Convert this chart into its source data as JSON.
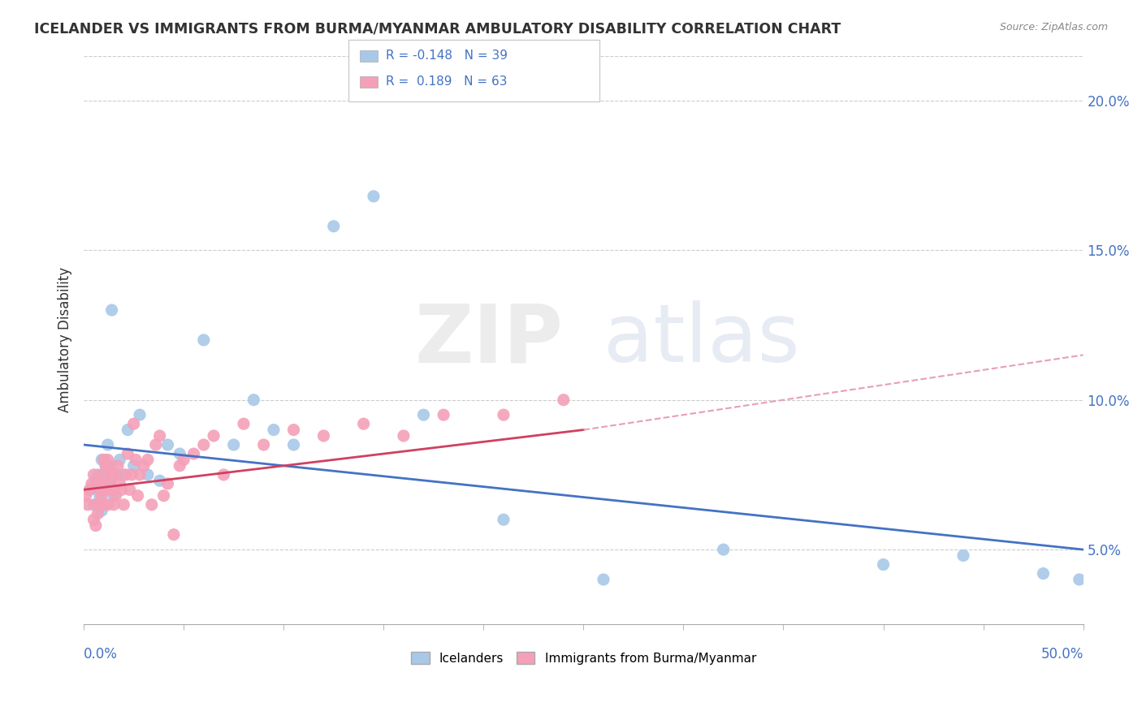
{
  "title": "ICELANDER VS IMMIGRANTS FROM BURMA/MYANMAR AMBULATORY DISABILITY CORRELATION CHART",
  "source": "Source: ZipAtlas.com",
  "ylabel": "Ambulatory Disability",
  "xlim": [
    0.0,
    0.5
  ],
  "ylim": [
    0.025,
    0.215
  ],
  "yticks": [
    0.05,
    0.1,
    0.15,
    0.2
  ],
  "ytick_labels": [
    "5.0%",
    "10.0%",
    "15.0%",
    "20.0%"
  ],
  "icelander_color": "#a8c8e8",
  "burma_color": "#f4a0b8",
  "icelander_line_color": "#4472c4",
  "burma_line_color": "#d04060",
  "burma_line_color2": "#e8a0b0",
  "icelanders_x": [
    0.003,
    0.005,
    0.006,
    0.007,
    0.008,
    0.009,
    0.009,
    0.01,
    0.011,
    0.011,
    0.012,
    0.013,
    0.014,
    0.015,
    0.016,
    0.018,
    0.02,
    0.022,
    0.025,
    0.028,
    0.032,
    0.038,
    0.042,
    0.048,
    0.06,
    0.075,
    0.085,
    0.095,
    0.105,
    0.125,
    0.145,
    0.17,
    0.21,
    0.26,
    0.32,
    0.4,
    0.44,
    0.48,
    0.498
  ],
  "icelanders_y": [
    0.07,
    0.065,
    0.073,
    0.075,
    0.068,
    0.08,
    0.063,
    0.075,
    0.07,
    0.078,
    0.085,
    0.073,
    0.13,
    0.068,
    0.075,
    0.08,
    0.075,
    0.09,
    0.078,
    0.095,
    0.075,
    0.073,
    0.085,
    0.082,
    0.12,
    0.085,
    0.1,
    0.09,
    0.085,
    0.158,
    0.168,
    0.095,
    0.06,
    0.04,
    0.05,
    0.045,
    0.048,
    0.042,
    0.04
  ],
  "burma_x": [
    0.001,
    0.002,
    0.003,
    0.004,
    0.005,
    0.005,
    0.006,
    0.006,
    0.007,
    0.007,
    0.008,
    0.008,
    0.009,
    0.009,
    0.01,
    0.01,
    0.01,
    0.011,
    0.011,
    0.012,
    0.012,
    0.013,
    0.013,
    0.014,
    0.014,
    0.015,
    0.015,
    0.016,
    0.017,
    0.018,
    0.019,
    0.02,
    0.021,
    0.022,
    0.023,
    0.024,
    0.025,
    0.026,
    0.027,
    0.028,
    0.03,
    0.032,
    0.034,
    0.036,
    0.038,
    0.04,
    0.042,
    0.045,
    0.048,
    0.05,
    0.055,
    0.06,
    0.065,
    0.07,
    0.08,
    0.09,
    0.105,
    0.12,
    0.14,
    0.16,
    0.18,
    0.21,
    0.24
  ],
  "burma_y": [
    0.068,
    0.065,
    0.07,
    0.072,
    0.075,
    0.06,
    0.058,
    0.065,
    0.062,
    0.072,
    0.065,
    0.07,
    0.068,
    0.075,
    0.065,
    0.072,
    0.08,
    0.07,
    0.078,
    0.065,
    0.08,
    0.072,
    0.078,
    0.07,
    0.075,
    0.065,
    0.075,
    0.068,
    0.078,
    0.072,
    0.07,
    0.065,
    0.075,
    0.082,
    0.07,
    0.075,
    0.092,
    0.08,
    0.068,
    0.075,
    0.078,
    0.08,
    0.065,
    0.085,
    0.088,
    0.068,
    0.072,
    0.055,
    0.078,
    0.08,
    0.082,
    0.085,
    0.088,
    0.075,
    0.092,
    0.085,
    0.09,
    0.088,
    0.092,
    0.088,
    0.095,
    0.095,
    0.1
  ]
}
